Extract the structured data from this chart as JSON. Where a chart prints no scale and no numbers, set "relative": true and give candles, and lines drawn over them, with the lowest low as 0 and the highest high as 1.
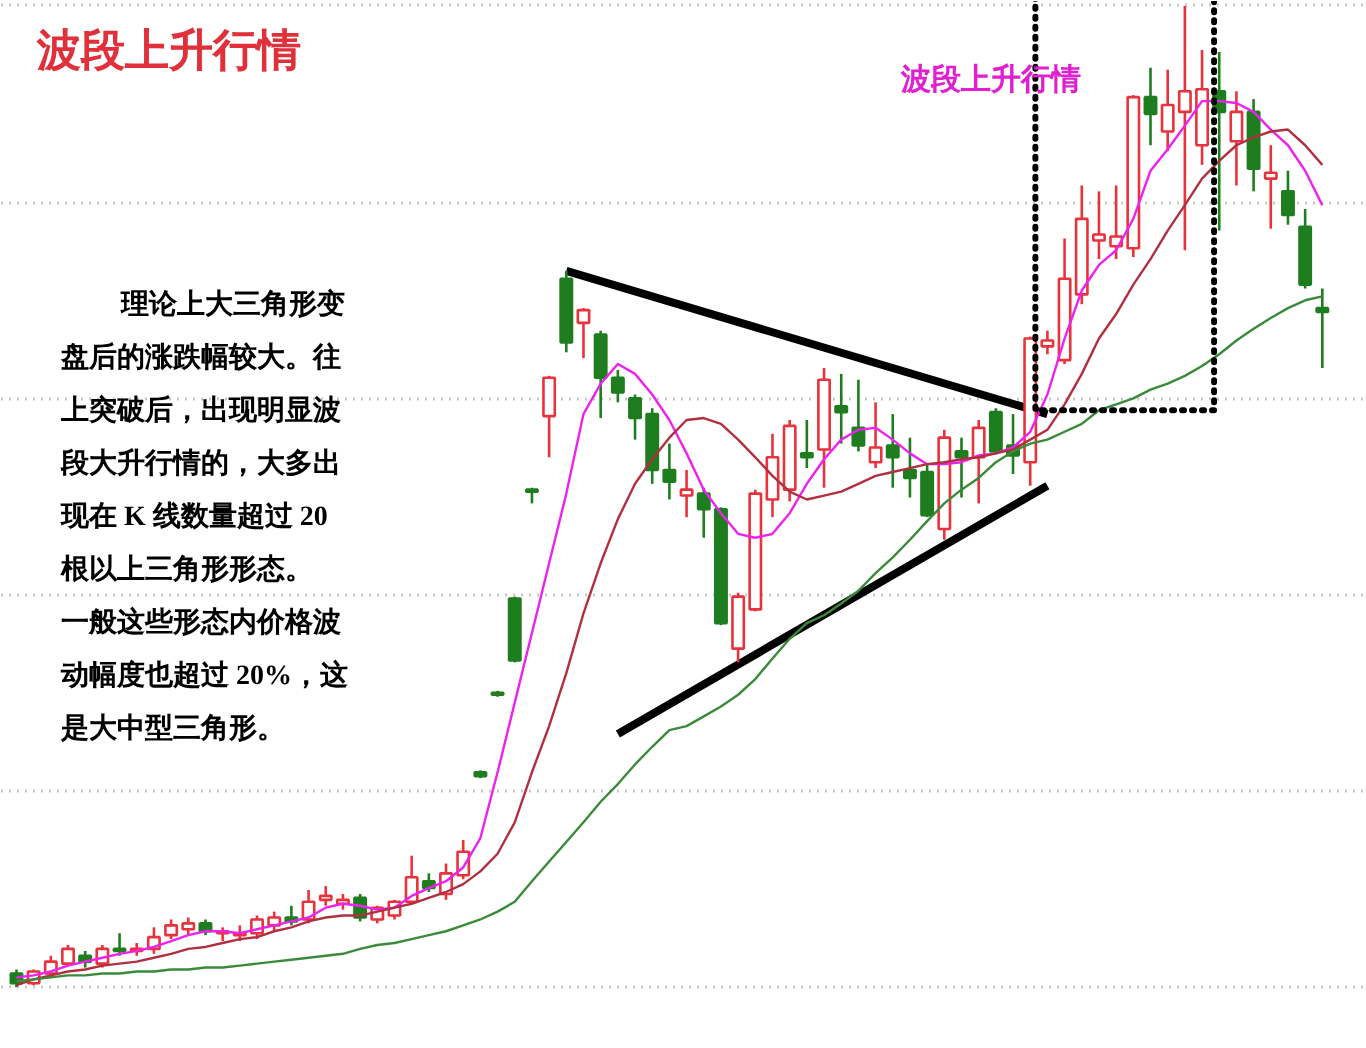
{
  "chart_data": {
    "type": "candlestick",
    "relative": true,
    "title": "波段上升行情",
    "annotations": [
      "理论上大三角形变盘后的涨跌幅较大。往上突破后，出现明显波段大升行情的，大多出现在 K 线数量超过 20 根以上三角形形态。一般这些形态内价格波动幅度也超过 20%，这是大中型三角形。",
      "波段上升行情"
    ],
    "grid": "y",
    "categories": [
      null,
      null,
      null,
      null,
      null,
      null,
      null,
      null,
      null,
      null,
      null,
      null,
      null,
      null,
      null,
      null,
      null,
      null,
      null,
      null,
      null,
      null,
      null,
      null,
      null,
      null,
      null,
      null,
      null,
      null,
      null,
      null,
      null,
      null,
      null,
      null,
      null,
      null,
      null,
      null,
      null,
      null,
      null,
      null,
      null,
      null,
      null,
      null,
      null,
      null,
      null,
      null,
      null,
      null,
      null,
      null,
      null,
      null,
      null,
      null,
      null,
      null,
      null,
      null,
      null,
      null,
      null,
      null,
      null,
      null,
      null,
      null,
      null,
      null,
      null,
      null,
      null
    ],
    "ohlc": [
      [
        0.014,
        0.018,
        0,
        0.004
      ],
      [
        0.004,
        0.018,
        0.002,
        0.016
      ],
      [
        0.014,
        0.032,
        0.01,
        0.026
      ],
      [
        0.024,
        0.043,
        0.022,
        0.039
      ],
      [
        0.032,
        0.037,
        0.02,
        0.026
      ],
      [
        0.024,
        0.043,
        0.02,
        0.039
      ],
      [
        0.039,
        0.055,
        0.032,
        0.037
      ],
      [
        0.037,
        0.045,
        0.032,
        0.039
      ],
      [
        0.039,
        0.061,
        0.034,
        0.051
      ],
      [
        0.053,
        0.069,
        0.049,
        0.063
      ],
      [
        0.059,
        0.071,
        0.053,
        0.065
      ],
      [
        0.065,
        0.069,
        0.053,
        0.057
      ],
      [
        0.055,
        0.061,
        0.047,
        0.057
      ],
      [
        0.053,
        0.063,
        0.047,
        0.055
      ],
      [
        0.055,
        0.073,
        0.049,
        0.069
      ],
      [
        0.063,
        0.077,
        0.057,
        0.071
      ],
      [
        0.071,
        0.083,
        0.063,
        0.067
      ],
      [
        0.069,
        0.099,
        0.065,
        0.087
      ],
      [
        0.089,
        0.103,
        0.083,
        0.093
      ],
      [
        0.085,
        0.095,
        0.079,
        0.089
      ],
      [
        0.091,
        0.095,
        0.067,
        0.071
      ],
      [
        0.069,
        0.083,
        0.065,
        0.081
      ],
      [
        0.073,
        0.089,
        0.069,
        0.087
      ],
      [
        0.087,
        0.134,
        0.085,
        0.112
      ],
      [
        0.108,
        0.116,
        0.097,
        0.101
      ],
      [
        0.095,
        0.126,
        0.089,
        0.116
      ],
      [
        0.114,
        0.15,
        0.11,
        0.138
      ],
      [
        0.219,
        0.221,
        0.213,
        0.215
      ],
      [
        0.3,
        0.302,
        0.296,
        0.298
      ],
      [
        0.396,
        0.398,
        0.331,
        0.333
      ],
      [
        0.507,
        0.509,
        0.493,
        0.505
      ],
      [
        0.582,
        0.623,
        0.54,
        0.621
      ],
      [
        0.722,
        0.73,
        0.647,
        0.657
      ],
      [
        0.677,
        0.692,
        0.641,
        0.69
      ],
      [
        0.665,
        0.669,
        0.58,
        0.621
      ],
      [
        0.621,
        0.629,
        0.596,
        0.606
      ],
      [
        0.6,
        0.604,
        0.558,
        0.58
      ],
      [
        0.584,
        0.59,
        0.513,
        0.527
      ],
      [
        0.527,
        0.554,
        0.497,
        0.515
      ],
      [
        0.501,
        0.527,
        0.479,
        0.507
      ],
      [
        0.503,
        0.509,
        0.458,
        0.487
      ],
      [
        0.487,
        0.489,
        0.369,
        0.371
      ],
      [
        0.345,
        0.402,
        0.331,
        0.398
      ],
      [
        0.385,
        0.507,
        0.383,
        0.503
      ],
      [
        0.497,
        0.564,
        0.479,
        0.54
      ],
      [
        0.507,
        0.578,
        0.495,
        0.572
      ],
      [
        0.544,
        0.578,
        0.529,
        0.54
      ],
      [
        0.548,
        0.631,
        0.509,
        0.619
      ],
      [
        0.592,
        0.625,
        0.554,
        0.586
      ],
      [
        0.57,
        0.619,
        0.546,
        0.552
      ],
      [
        0.535,
        0.596,
        0.529,
        0.55
      ],
      [
        0.552,
        0.584,
        0.509,
        0.54
      ],
      [
        0.527,
        0.56,
        0.499,
        0.519
      ],
      [
        0.525,
        0.533,
        0.479,
        0.481
      ],
      [
        0.467,
        0.568,
        0.456,
        0.56
      ],
      [
        0.546,
        0.56,
        0.499,
        0.54
      ],
      [
        0.54,
        0.578,
        0.493,
        0.57
      ],
      [
        0.586,
        0.59,
        0.544,
        0.546
      ],
      [
        0.552,
        0.584,
        0.523,
        0.542
      ],
      [
        0.535,
        0.663,
        0.511,
        0.661
      ],
      [
        0.653,
        0.669,
        0.645,
        0.659
      ],
      [
        0.639,
        0.763,
        0.635,
        0.722
      ],
      [
        0.706,
        0.817,
        0.696,
        0.783
      ],
      [
        0.761,
        0.811,
        0.742,
        0.767
      ],
      [
        0.755,
        0.817,
        0.742,
        0.765
      ],
      [
        0.753,
        0.909,
        0.744,
        0.907
      ],
      [
        0.907,
        0.937,
        0.858,
        0.89
      ],
      [
        0.872,
        0.935,
        0.852,
        0.899
      ],
      [
        0.892,
        1,
        0.751,
        0.913
      ],
      [
        0.858,
        0.955,
        0.838,
        0.915
      ],
      [
        0.913,
        0.953,
        0.771,
        0.892
      ],
      [
        0.862,
        0.913,
        0.817,
        0.892
      ],
      [
        0.892,
        0.905,
        0.811,
        0.834
      ],
      [
        0.824,
        0.858,
        0.773,
        0.83
      ],
      [
        0.811,
        0.832,
        0.777,
        0.787
      ],
      [
        0.775,
        0.793,
        0.712,
        0.716
      ],
      [
        0.692,
        0.712,
        0.631,
        0.688
      ]
    ],
    "colors": [
      "#1e7d1e",
      "#e8323c",
      "#e8323c",
      "#e8323c",
      "#1e7d1e",
      "#e8323c",
      "#1e7d1e",
      "#e8323c",
      "#e8323c",
      "#e8323c",
      "#e8323c",
      "#1e7d1e",
      "#e8323c",
      "#e8323c",
      "#e8323c",
      "#e8323c",
      "#1e7d1e",
      "#e8323c",
      "#e8323c",
      "#e8323c",
      "#1e7d1e",
      "#e8323c",
      "#e8323c",
      "#e8323c",
      "#1e7d1e",
      "#e8323c",
      "#e8323c",
      "#1e7d1e",
      "#1e7d1e",
      "#1e7d1e",
      "#1e7d1e",
      "#e8323c",
      "#1e7d1e",
      "#e8323c",
      "#1e7d1e",
      "#1e7d1e",
      "#1e7d1e",
      "#1e7d1e",
      "#1e7d1e",
      "#e8323c",
      "#1e7d1e",
      "#1e7d1e",
      "#e8323c",
      "#e8323c",
      "#e8323c",
      "#e8323c",
      "#1e7d1e",
      "#e8323c",
      "#1e7d1e",
      "#1e7d1e",
      "#e8323c",
      "#1e7d1e",
      "#1e7d1e",
      "#1e7d1e",
      "#e8323c",
      "#1e7d1e",
      "#e8323c",
      "#1e7d1e",
      "#1e7d1e",
      "#e8323c",
      "#e8323c",
      "#e8323c",
      "#e8323c",
      "#e8323c",
      "#e8323c",
      "#e8323c",
      "#1e7d1e",
      "#e8323c",
      "#e8323c",
      "#e8323c",
      "#1e7d1e",
      "#e8323c",
      "#1e7d1e",
      "#e8323c",
      "#1e7d1e",
      "#1e7d1e",
      "#1e7d1e"
    ],
    "series": [
      {
        "type": "line",
        "color": "#ee22ee",
        "values": [
          0.01,
          0.012,
          0.016,
          0.022,
          0.026,
          0.03,
          0.034,
          0.037,
          0.041,
          0.047,
          0.053,
          0.057,
          0.057,
          0.055,
          0.059,
          0.063,
          0.067,
          0.071,
          0.081,
          0.085,
          0.083,
          0.079,
          0.081,
          0.093,
          0.101,
          0.108,
          0.122,
          0.152,
          0.219,
          0.29,
          0.361,
          0.432,
          0.503,
          0.584,
          0.615,
          0.635,
          0.625,
          0.604,
          0.578,
          0.544,
          0.507,
          0.483,
          0.462,
          0.458,
          0.462,
          0.483,
          0.513,
          0.538,
          0.558,
          0.568,
          0.57,
          0.558,
          0.544,
          0.533,
          0.533,
          0.535,
          0.542,
          0.544,
          0.55,
          0.566,
          0.604,
          0.661,
          0.71,
          0.736,
          0.751,
          0.783,
          0.832,
          0.854,
          0.878,
          0.903,
          0.903,
          0.901,
          0.892,
          0.874,
          0.858,
          0.832,
          0.797
        ]
      },
      {
        "type": "line",
        "color": "#b03040",
        "values": [
          0.002,
          0.008,
          0.012,
          0.016,
          0.018,
          0.022,
          0.024,
          0.026,
          0.03,
          0.034,
          0.039,
          0.041,
          0.045,
          0.049,
          0.051,
          0.057,
          0.061,
          0.067,
          0.071,
          0.073,
          0.073,
          0.077,
          0.081,
          0.085,
          0.091,
          0.097,
          0.105,
          0.118,
          0.136,
          0.168,
          0.219,
          0.266,
          0.32,
          0.381,
          0.432,
          0.477,
          0.513,
          0.538,
          0.56,
          0.578,
          0.58,
          0.574,
          0.558,
          0.54,
          0.521,
          0.505,
          0.497,
          0.501,
          0.505,
          0.513,
          0.521,
          0.525,
          0.529,
          0.533,
          0.535,
          0.538,
          0.54,
          0.544,
          0.548,
          0.558,
          0.568,
          0.594,
          0.625,
          0.661,
          0.686,
          0.716,
          0.742,
          0.771,
          0.797,
          0.824,
          0.842,
          0.858,
          0.866,
          0.872,
          0.874,
          0.858,
          0.838
        ]
      },
      {
        "type": "line",
        "color": "#3a8a3a",
        "values": [
          0.006,
          0.008,
          0.01,
          0.012,
          0.012,
          0.014,
          0.014,
          0.016,
          0.016,
          0.018,
          0.018,
          0.02,
          0.02,
          0.022,
          0.024,
          0.026,
          0.028,
          0.03,
          0.032,
          0.034,
          0.039,
          0.043,
          0.045,
          0.049,
          0.053,
          0.057,
          0.063,
          0.069,
          0.077,
          0.087,
          0.108,
          0.128,
          0.148,
          0.168,
          0.189,
          0.207,
          0.227,
          0.245,
          0.262,
          0.266,
          0.276,
          0.286,
          0.298,
          0.314,
          0.335,
          0.355,
          0.371,
          0.379,
          0.391,
          0.404,
          0.422,
          0.438,
          0.456,
          0.475,
          0.493,
          0.507,
          0.519,
          0.535,
          0.546,
          0.554,
          0.558,
          0.566,
          0.574,
          0.588,
          0.594,
          0.6,
          0.609,
          0.615,
          0.623,
          0.633,
          0.645,
          0.659,
          0.671,
          0.682,
          0.692,
          0.7,
          0.704
        ]
      },
      {
        "type": "line",
        "color": "#000000",
        "values": [
          null,
          null,
          null,
          null,
          null,
          null,
          null,
          null,
          null,
          null,
          null,
          null,
          null,
          null,
          null,
          null,
          null,
          null,
          null,
          null,
          null,
          null,
          null,
          null,
          null,
          null,
          null,
          null,
          null,
          null,
          null,
          null,
          0.73,
          null,
          null,
          null,
          null,
          null,
          null,
          null,
          null,
          null,
          null,
          null,
          null,
          null,
          null,
          null,
          null,
          null,
          null,
          null,
          null,
          null,
          null,
          null,
          null,
          null,
          null,
          null,
          0.584,
          null,
          null,
          null,
          null,
          null,
          null,
          null,
          null,
          null,
          null,
          null,
          null,
          null,
          null,
          null,
          null
        ]
      },
      {
        "type": "line",
        "color": "#000000",
        "values": [
          null,
          null,
          null,
          null,
          null,
          null,
          null,
          null,
          null,
          null,
          null,
          null,
          null,
          null,
          null,
          null,
          null,
          null,
          null,
          null,
          null,
          null,
          null,
          null,
          null,
          null,
          null,
          null,
          null,
          null,
          null,
          null,
          null,
          null,
          null,
          0.258,
          null,
          null,
          null,
          null,
          null,
          null,
          null,
          null,
          null,
          null,
          null,
          null,
          null,
          null,
          null,
          null,
          null,
          null,
          null,
          null,
          null,
          null,
          null,
          null,
          0.511,
          null,
          null,
          null,
          null,
          null,
          null,
          null,
          null,
          null,
          null,
          null,
          null,
          null,
          null,
          null,
          null
        ]
      }
    ]
  }
}
